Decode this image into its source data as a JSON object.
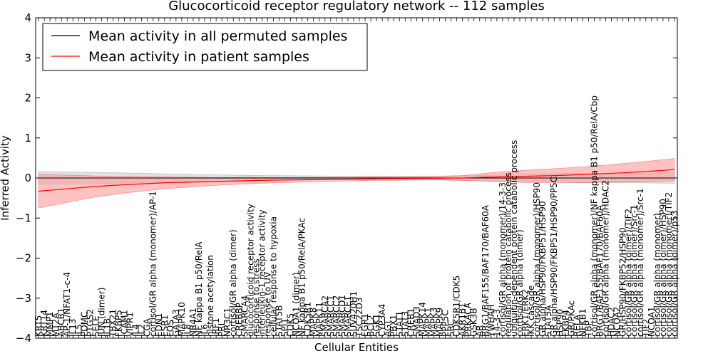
{
  "chart_data": {
    "type": "line",
    "title": "Glucocorticoid receptor regulatory network -- 112 samples",
    "xlabel": "Cellular Entities",
    "ylabel": "Inferred Activity",
    "ylim": [
      -4,
      4
    ],
    "yticks": [
      -4,
      -3,
      -2,
      -1,
      0,
      1,
      2,
      3,
      4
    ],
    "ytick_labels": [
      "−4",
      "−3",
      "−2",
      "−1",
      "0",
      "1",
      "2",
      "3",
      "4"
    ],
    "legend": {
      "placement": "top-left",
      "entries": [
        {
          "label": "Mean activity in all permuted samples",
          "color": "#000000"
        },
        {
          "label": "Mean activity in patient samples",
          "color": "#ff0000"
        }
      ]
    },
    "colors": {
      "patient_line": "#ff0000",
      "patient_band": "#ff9999",
      "permuted_line": "#000000",
      "permuted_band": "#c8c8c8"
    },
    "entities": [
      "KRT5",
      "KRT14",
      "MMP1",
      "MT2A",
      "ABCB1",
      "AP-1/NFAT1-c-4",
      "IL13",
      "IL5",
      "POMC",
      "PTGS2",
      "SELE",
      "JUN (dimer)",
      "IL1B",
      "TBX21",
      "FKBP5",
      "ICAM1",
      "VIPR1",
      "IL4",
      "IL2",
      "CGA",
      "cortisol/GR alpha (monomer)/AP-1",
      "EDN1",
      "ESR1",
      "FOS",
      "GATA3",
      "MAPK10",
      "IL8",
      "NR4A1",
      "NF kappa B1 p50/RelA",
      "IL6",
      "histone acetylation",
      "IRF1",
      "PRL",
      "NR3C1",
      "cortisol/GR alpha (dimer)",
      "CREBBP",
      "SMARCA4",
      "glucocorticoid receptor activity",
      "response to stress",
      "interleukin-1 receptor activity",
      "response to UV",
      "cellular response to hypoxia",
      "STAT5B",
      "SPI1",
      "CDK5",
      "NCOA1 (dimer)",
      "NF kappa B1 p50/RelA/PKAc",
      "CDK5R1",
      "MAPK8",
      "MAPK11",
      "SMARCA2",
      "SMARCC1",
      "SMARCC2",
      "SMARCD1",
      "SMARCE1",
      "SUV420H1",
      "TSC22D3",
      "EGR1",
      "BCL2",
      "SGK1",
      "CYP3A4",
      "AGT",
      "PBX1",
      "STAT1",
      "STAT3",
      "CREB1",
      "SMAD3",
      "MAPK14",
      "MAPK1",
      "MAPK3",
      "MAPK9",
      "PPP5C",
      "SRC",
      "CDK5R1/CDK5",
      "AKR1B1",
      "PRKACA",
      "GSK3B",
      "AR",
      "BRG1/BAF155/BAF170/BAF60A",
      "YWHAH",
      "14-3-3",
      "cortisol/GR alpha (monomer)/14-3-3",
      "regulation of protein catabolic process",
      "ubiquitin-dependent protein catabolic process",
      "cortisol/GR alpha (dimer)",
      "ERK1/ERK2",
      "IKK cascade",
      "cortisol/GR alpha (monomer)/HSP90",
      "GR alpha/HSP90/FKBP51/HSP90",
      "STAT5A",
      "GR alpha/HSP90/FKBP51/HSP90/PP5C",
      "HSP90",
      "FKBP4",
      "GR/PKAc",
      "RELA",
      "NFKB1",
      "TBP",
      "cortisol/GR alpha (monomer)/NF kappa B1 p50/RelA/Cbp",
      "BRG1/BAF155/BAF170/BAF60A",
      "cortisol/GR alpha (monomer)/HDAC2",
      "HDAC2",
      "NCOA2",
      "GR/HSP90/FKBP52/HSP90",
      "cortisol/GR alpha (dimer)/TIF2",
      "cortisol/GR alpha (dimer)/Src-1",
      "cortisol/GR alpha (monomer)/Src-1",
      "TIF2",
      "NCOA1",
      "cortisol/GR alpha (monomer)",
      "cortisol/GR alpha (dimer)/HSP90",
      "cortisol/GR alpha (monomer)/TIF2",
      "cortisol/GR alpha (dimer)/p53"
    ],
    "patient_mean_anchors": [
      [
        0,
        -0.33
      ],
      [
        5,
        -0.27
      ],
      [
        10,
        -0.21
      ],
      [
        16,
        -0.16
      ],
      [
        22,
        -0.12
      ],
      [
        30,
        -0.09
      ],
      [
        38,
        -0.06
      ],
      [
        48,
        -0.04
      ],
      [
        58,
        -0.02
      ],
      [
        68,
        -0.01
      ],
      [
        74,
        0.0
      ],
      [
        78,
        0.02
      ],
      [
        84,
        0.04
      ],
      [
        90,
        0.06
      ],
      [
        96,
        0.09
      ],
      [
        102,
        0.13
      ],
      [
        108,
        0.18
      ],
      [
        111,
        0.21
      ]
    ],
    "patient_band_halfwidth_anchors": [
      [
        0,
        0.42
      ],
      [
        5,
        0.34
      ],
      [
        10,
        0.26
      ],
      [
        16,
        0.2
      ],
      [
        22,
        0.15
      ],
      [
        30,
        0.1
      ],
      [
        40,
        0.07
      ],
      [
        50,
        0.05
      ],
      [
        60,
        0.04
      ],
      [
        70,
        0.04
      ],
      [
        74,
        0.06
      ],
      [
        80,
        0.12
      ],
      [
        86,
        0.16
      ],
      [
        92,
        0.18
      ],
      [
        100,
        0.22
      ],
      [
        106,
        0.25
      ],
      [
        111,
        0.28
      ]
    ],
    "permuted_mean": 0.0,
    "permuted_band_halfwidth_anchors": [
      [
        0,
        0.16
      ],
      [
        10,
        0.14
      ],
      [
        20,
        0.11
      ],
      [
        30,
        0.08
      ],
      [
        40,
        0.06
      ],
      [
        50,
        0.05
      ],
      [
        60,
        0.05
      ],
      [
        70,
        0.05
      ],
      [
        78,
        0.07
      ],
      [
        86,
        0.1
      ],
      [
        94,
        0.12
      ],
      [
        104,
        0.12
      ],
      [
        111,
        0.13
      ]
    ]
  }
}
